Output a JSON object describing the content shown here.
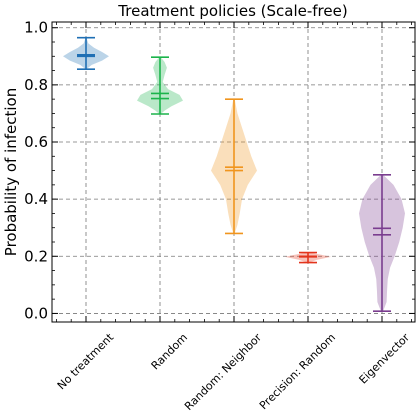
{
  "chart_data": {
    "type": "violin",
    "title": "Treatment policies (Scale-free)",
    "xlabel": "",
    "ylabel": "Probability of infection",
    "ylim": [
      -0.03,
      1.02
    ],
    "yticks": [
      "0.0",
      "0.2",
      "0.4",
      "0.6",
      "0.8",
      "1.0"
    ],
    "grid": true,
    "categories": [
      "No treatment",
      "Random",
      "Random: Neighbor",
      "Precision: Random",
      "Eigenvector"
    ],
    "series": [
      {
        "category": "No treatment",
        "color": "#1f6fb4",
        "min": 0.855,
        "max": 0.965,
        "mean": 0.905,
        "median": 0.9,
        "density": [
          [
            0.855,
            0.02
          ],
          [
            0.87,
            0.25
          ],
          [
            0.885,
            0.7
          ],
          [
            0.9,
            1.0
          ],
          [
            0.915,
            0.7
          ],
          [
            0.93,
            0.35
          ],
          [
            0.945,
            0.1
          ],
          [
            0.965,
            0.02
          ]
        ]
      },
      {
        "category": "Random",
        "color": "#1bb44b",
        "min": 0.698,
        "max": 0.897,
        "mean": 0.77,
        "median": 0.752,
        "density": [
          [
            0.698,
            0.03
          ],
          [
            0.71,
            0.2
          ],
          [
            0.725,
            0.5
          ],
          [
            0.745,
            1.0
          ],
          [
            0.765,
            0.85
          ],
          [
            0.785,
            0.35
          ],
          [
            0.81,
            0.12
          ],
          [
            0.835,
            0.2
          ],
          [
            0.86,
            0.3
          ],
          [
            0.88,
            0.2
          ],
          [
            0.897,
            0.03
          ]
        ]
      },
      {
        "category": "Random: Neighbor",
        "color": "#f0951e",
        "min": 0.28,
        "max": 0.75,
        "mean": 0.512,
        "median": 0.5,
        "density": [
          [
            0.28,
            0.03
          ],
          [
            0.31,
            0.15
          ],
          [
            0.35,
            0.25
          ],
          [
            0.4,
            0.35
          ],
          [
            0.45,
            0.6
          ],
          [
            0.5,
            1.0
          ],
          [
            0.55,
            0.75
          ],
          [
            0.6,
            0.55
          ],
          [
            0.65,
            0.35
          ],
          [
            0.7,
            0.15
          ],
          [
            0.75,
            0.03
          ]
        ]
      },
      {
        "category": "Precision: Random",
        "color": "#e3341c",
        "min": 0.178,
        "max": 0.213,
        "mean": 0.2,
        "median": 0.198,
        "density": [
          [
            0.178,
            0.05
          ],
          [
            0.188,
            0.4
          ],
          [
            0.198,
            1.0
          ],
          [
            0.205,
            0.6
          ],
          [
            0.213,
            0.05
          ]
        ]
      },
      {
        "category": "Eigenvector",
        "color": "#7a3d8f",
        "min": 0.008,
        "max": 0.485,
        "mean": 0.298,
        "median": 0.275,
        "density": [
          [
            0.008,
            0.05
          ],
          [
            0.04,
            0.2
          ],
          [
            0.08,
            0.22
          ],
          [
            0.12,
            0.25
          ],
          [
            0.16,
            0.35
          ],
          [
            0.2,
            0.55
          ],
          [
            0.25,
            0.75
          ],
          [
            0.3,
            0.9
          ],
          [
            0.35,
            1.0
          ],
          [
            0.4,
            0.85
          ],
          [
            0.45,
            0.5
          ],
          [
            0.485,
            0.05
          ]
        ]
      }
    ]
  }
}
